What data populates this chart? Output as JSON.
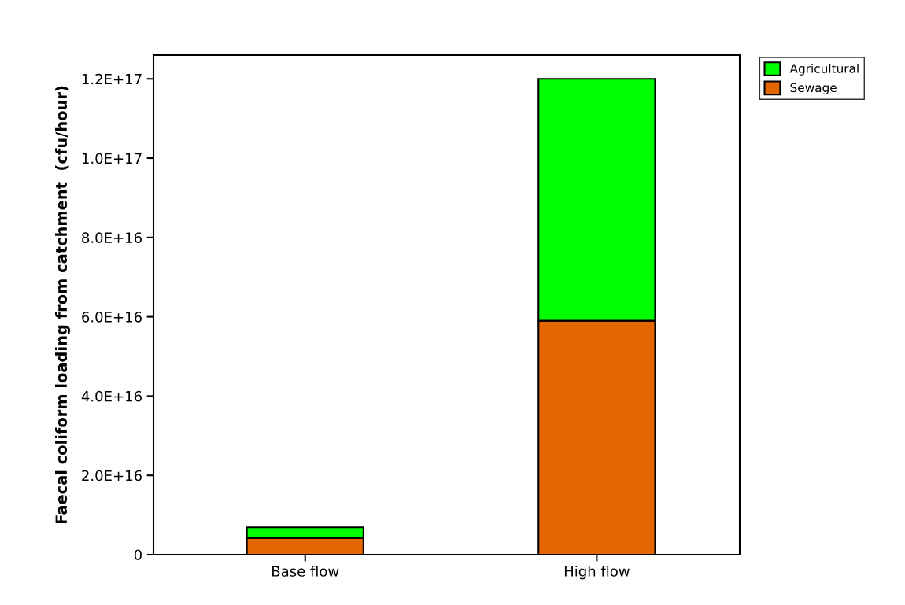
{
  "chart_data": {
    "type": "bar",
    "stacked": true,
    "ylabel": "Faecal coliform loading from catchment  (cfu/hour)",
    "categories": [
      "Base flow",
      "High flow"
    ],
    "series": [
      {
        "name": "Sewage",
        "color": "#e36600",
        "values": [
          4200000000000000.0,
          5.9e+16
        ]
      },
      {
        "name": "Agricultural",
        "color": "#00ff00",
        "values": [
          2700000000000000.0,
          6.1e+16
        ]
      }
    ],
    "ylim": [
      0,
      1.26e+17
    ],
    "yticks": [
      0,
      {
        "value": 2e+16,
        "label": "2.0E+16"
      },
      {
        "value": 4e+16,
        "label": "4.0E+16"
      },
      {
        "value": 6e+16,
        "label": "6.0E+16"
      },
      {
        "value": 8e+16,
        "label": "8.0E+16"
      },
      {
        "value": 1e+17,
        "label": "1.0E+17"
      },
      {
        "value": 1.2e+17,
        "label": "1.2E+17"
      }
    ],
    "grid": false,
    "legend": "top right"
  }
}
